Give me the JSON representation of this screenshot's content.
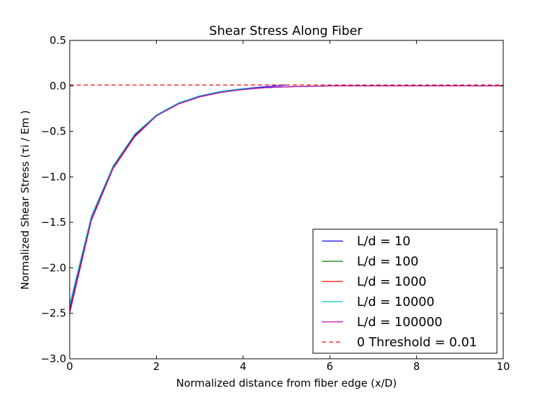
{
  "chart_data": {
    "type": "line",
    "title": "Shear Stress Along Fiber",
    "xlabel": "Normalized distance from fiber edge (x/D)",
    "ylabel": "Normalized Shear Stress (τi / Em )",
    "xlim": [
      0,
      10
    ],
    "ylim": [
      -3.0,
      0.5
    ],
    "xticks": [
      0,
      2,
      4,
      6,
      8,
      10
    ],
    "xtick_labels": [
      "0",
      "2",
      "4",
      "6",
      "8",
      "10"
    ],
    "yticks": [
      0.5,
      0.0,
      -0.5,
      -1.0,
      -1.5,
      -2.0,
      -2.5,
      -3.0
    ],
    "ytick_labels": [
      "0.5",
      "0.0",
      "−0.5",
      "−1.0",
      "−1.5",
      "−2.0",
      "−2.5",
      "−3.0"
    ],
    "grid": false,
    "legend_position": "lower-right",
    "series": [
      {
        "name": "L/d = 10",
        "color": "#0000ff",
        "x": [
          0,
          0.5,
          1.0,
          1.5,
          2.0,
          2.5,
          3.0,
          3.5,
          4.0,
          4.5,
          5.0
        ],
        "y": [
          -2.45,
          -1.46,
          -0.89,
          -0.54,
          -0.32,
          -0.19,
          -0.11,
          -0.06,
          -0.03,
          -0.01,
          0.01
        ]
      },
      {
        "name": "L/d = 100",
        "color": "#008000",
        "x": [
          0,
          0.5,
          1.0,
          1.5,
          2.0,
          2.5,
          3.0,
          3.5,
          4.0,
          4.5,
          5.0,
          6.0,
          7.0,
          8.0,
          9.0,
          10.0
        ],
        "y": [
          -2.47,
          -1.47,
          -0.9,
          -0.55,
          -0.33,
          -0.2,
          -0.12,
          -0.07,
          -0.04,
          -0.02,
          -0.01,
          0.0,
          0.0,
          0.0,
          0.0,
          0.0
        ]
      },
      {
        "name": "L/d = 1000",
        "color": "#ff0000",
        "x": [
          0,
          0.5,
          1.0,
          1.5,
          2.0,
          2.5,
          3.0,
          3.5,
          4.0,
          4.5,
          5.0,
          6.0,
          7.0,
          8.0,
          9.0,
          10.0
        ],
        "y": [
          -2.48,
          -1.47,
          -0.9,
          -0.55,
          -0.33,
          -0.2,
          -0.12,
          -0.07,
          -0.04,
          -0.02,
          -0.01,
          0.0,
          0.0,
          0.0,
          0.0,
          0.0
        ]
      },
      {
        "name": "L/d = 10000",
        "color": "#00bfbf",
        "x": [
          0,
          0.5,
          1.0,
          1.5,
          2.0,
          2.5,
          3.0,
          3.5,
          4.0,
          4.5,
          5.0,
          6.0,
          7.0,
          8.0,
          9.0,
          10.0
        ],
        "y": [
          -2.4,
          -1.43,
          -0.88,
          -0.53,
          -0.32,
          -0.19,
          -0.11,
          -0.06,
          -0.03,
          -0.02,
          -0.01,
          0.0,
          0.0,
          0.0,
          0.0,
          0.0
        ]
      },
      {
        "name": "L/d = 100000",
        "color": "#bf00bf",
        "x": [
          0,
          0.5,
          1.0,
          1.5,
          2.0,
          2.5,
          3.0,
          3.5,
          4.0,
          4.5,
          5.0,
          6.0,
          7.0,
          8.0,
          9.0,
          10.0
        ],
        "y": [
          -2.5,
          -1.48,
          -0.91,
          -0.56,
          -0.33,
          -0.2,
          -0.12,
          -0.07,
          -0.04,
          -0.02,
          -0.01,
          0.0,
          0.0,
          0.0,
          0.0,
          0.0
        ]
      },
      {
        "name": "0 Threshold = 0.01",
        "color": "#ff0000",
        "dashed": true,
        "x": [
          0,
          10
        ],
        "y": [
          0.01,
          0.01
        ]
      }
    ]
  }
}
